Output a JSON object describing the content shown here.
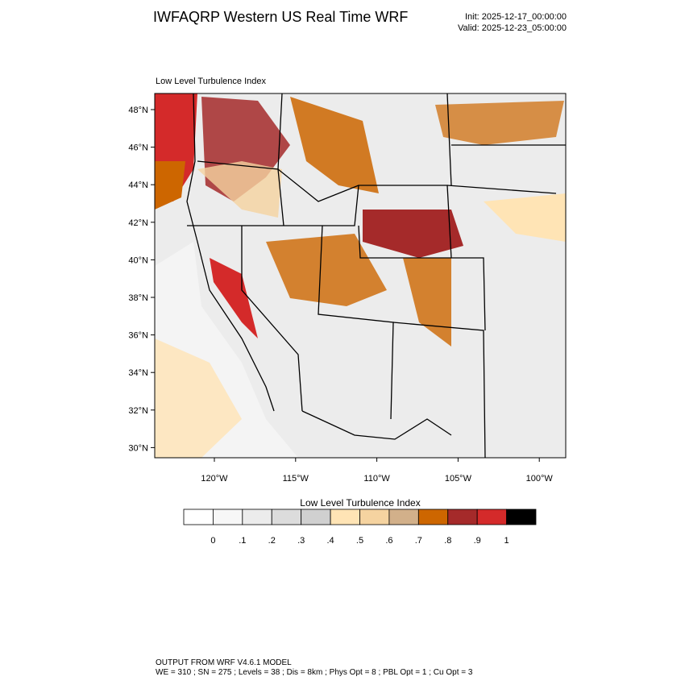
{
  "header": {
    "title": "IWFAQRP Western US Real Time WRF",
    "init": "Init: 2025-12-17_00:00:00",
    "valid": "Valid: 2025-12-23_05:00:00"
  },
  "map": {
    "title": "Low Level Turbulence Index",
    "lat_labels": [
      "48°N",
      "46°N",
      "44°N",
      "42°N",
      "40°N",
      "38°N",
      "36°N",
      "34°N",
      "32°N",
      "30°N"
    ],
    "lon_labels": [
      "120°W",
      "115°W",
      "110°W",
      "105°W",
      "100°W"
    ]
  },
  "colorbar": {
    "title": "Low Level Turbulence Index",
    "colors": [
      "#ffffff",
      "#f7f7f7",
      "#ececec",
      "#dcdcdc",
      "#d0d0d0",
      "#ffe4b5",
      "#f5d3a0",
      "#d2b08a",
      "#cd6600",
      "#a52a2a",
      "#d42a2a",
      "#000000"
    ],
    "labels": [
      "0",
      ".1",
      ".2",
      ".3",
      ".4",
      ".5",
      ".6",
      ".7",
      ".8",
      ".9",
      "1"
    ]
  },
  "footer": {
    "line1": "OUTPUT FROM WRF V4.6.1 MODEL",
    "line2": "WE = 310 ; SN = 275 ; Levels = 38 ; Dis = 8km ; Phys Opt = 8 ; PBL Opt = 1 ; Cu Opt = 3"
  }
}
